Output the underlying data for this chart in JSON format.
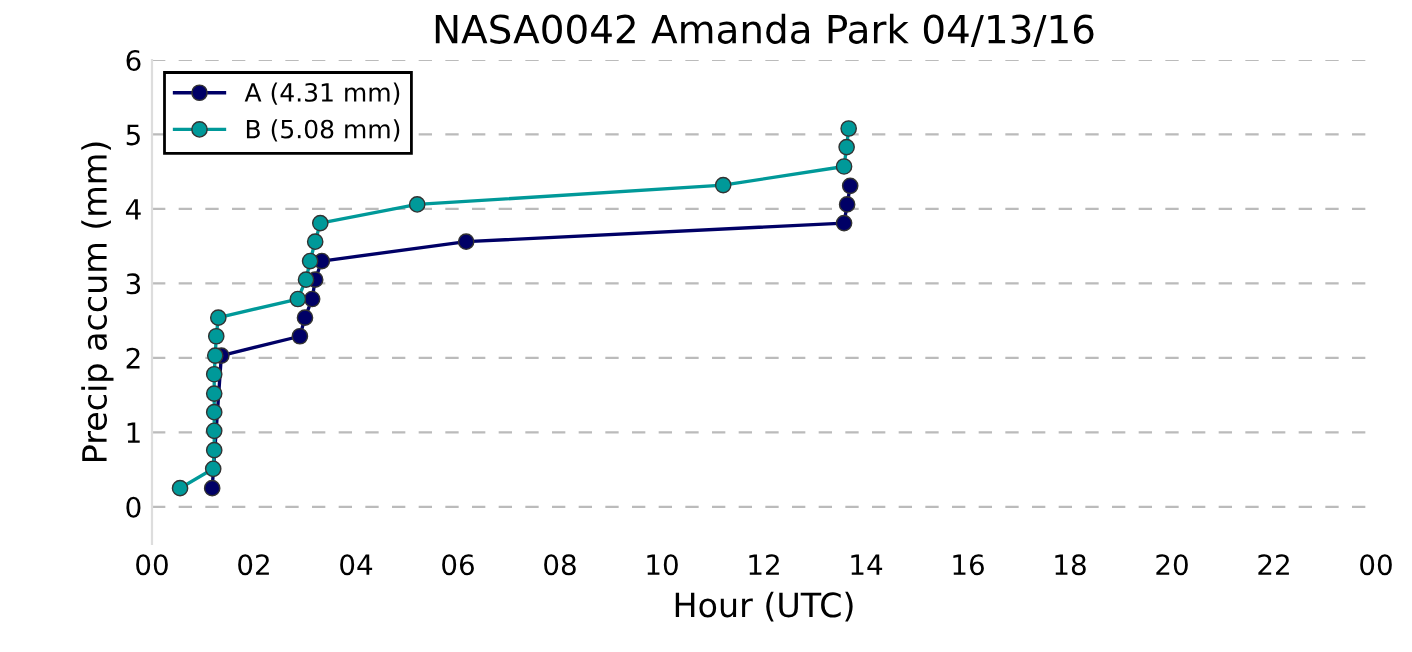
{
  "chart_data": {
    "type": "line",
    "title": "NASA0042 Amanda Park 04/13/16",
    "xlabel": "Hour (UTC)",
    "ylabel": "Precip accum (mm)",
    "series": [
      {
        "name": "A (4.31 mm)",
        "color": "#000066",
        "x": [
          1.18,
          1.36,
          2.9,
          3.0,
          3.14,
          3.2,
          3.33,
          6.16,
          13.57,
          13.63,
          13.69
        ],
        "values": [
          0.25,
          2.03,
          2.29,
          2.54,
          2.79,
          3.05,
          3.3,
          3.56,
          3.81,
          4.06,
          4.31
        ]
      },
      {
        "name": "B (5.08 mm)",
        "color": "#009999",
        "x": [
          0.55,
          1.2,
          1.22,
          1.22,
          1.22,
          1.22,
          1.22,
          1.24,
          1.26,
          1.3,
          2.86,
          3.02,
          3.1,
          3.2,
          3.3,
          5.2,
          11.2,
          13.57,
          13.62,
          13.66
        ],
        "values": [
          0.25,
          0.51,
          0.76,
          1.02,
          1.27,
          1.52,
          1.78,
          2.03,
          2.29,
          2.54,
          2.79,
          3.05,
          3.3,
          3.56,
          3.81,
          4.06,
          4.32,
          4.57,
          4.83,
          5.08
        ]
      }
    ],
    "xlim": [
      0,
      24
    ],
    "ylim": [
      -0.5,
      6
    ],
    "xticks": [
      {
        "value": 0,
        "label": "00"
      },
      {
        "value": 2,
        "label": "02"
      },
      {
        "value": 4,
        "label": "04"
      },
      {
        "value": 6,
        "label": "06"
      },
      {
        "value": 8,
        "label": "08"
      },
      {
        "value": 10,
        "label": "10"
      },
      {
        "value": 12,
        "label": "12"
      },
      {
        "value": 14,
        "label": "14"
      },
      {
        "value": 16,
        "label": "16"
      },
      {
        "value": 18,
        "label": "18"
      },
      {
        "value": 20,
        "label": "20"
      },
      {
        "value": 22,
        "label": "22"
      },
      {
        "value": 24,
        "label": "00"
      }
    ],
    "yticks": [
      0,
      1,
      2,
      3,
      4,
      5,
      6
    ],
    "grid": "y",
    "legend": "top left",
    "marker": "circle",
    "line_style": "solid"
  }
}
